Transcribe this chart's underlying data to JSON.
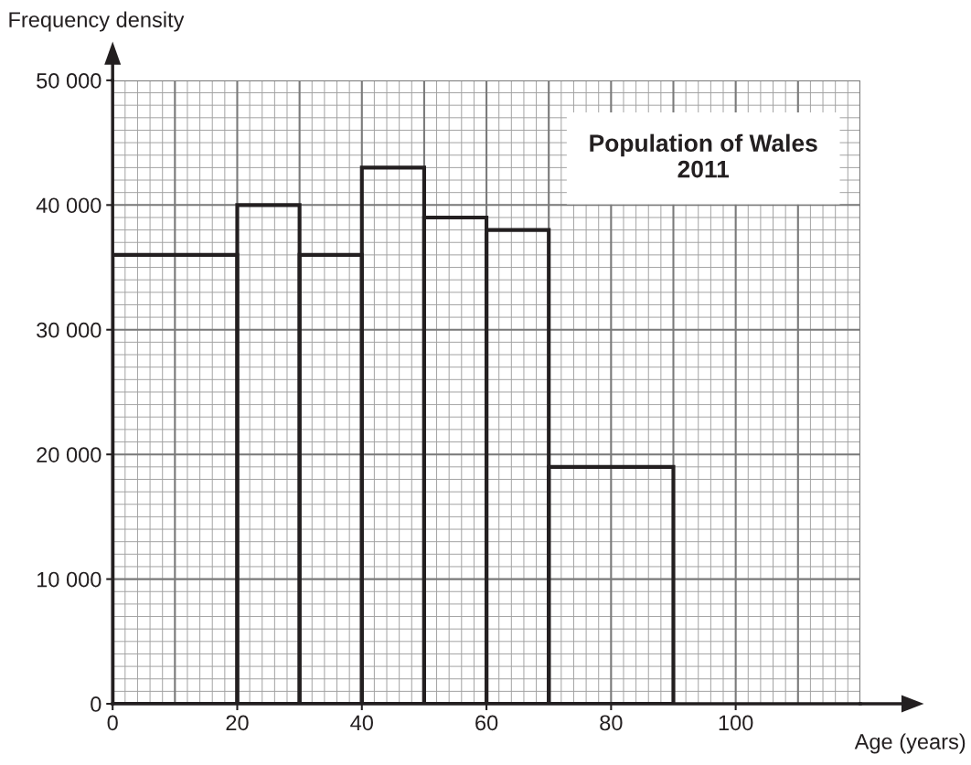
{
  "chart_data": {
    "type": "histogram",
    "title": "Population of Wales\n2011",
    "xlabel": "Age (years)",
    "ylabel": "Frequency density",
    "bins": [
      0,
      20,
      30,
      40,
      50,
      60,
      70,
      90
    ],
    "values": [
      36000,
      40000,
      36000,
      43000,
      39000,
      38000,
      19000
    ],
    "color": "#231f20",
    "xlim": [
      0,
      120
    ],
    "ylim": [
      0,
      50000
    ],
    "xticks": [
      0,
      20,
      40,
      60,
      80,
      100
    ],
    "yticks": [
      {
        "value": 0,
        "label": "0"
      },
      {
        "value": 10000,
        "label": "10 000"
      },
      {
        "value": 20000,
        "label": "20 000"
      },
      {
        "value": 30000,
        "label": "30 000"
      },
      {
        "value": 40000,
        "label": "40 000"
      },
      {
        "value": 50000,
        "label": "50 000"
      }
    ],
    "grid": true
  }
}
